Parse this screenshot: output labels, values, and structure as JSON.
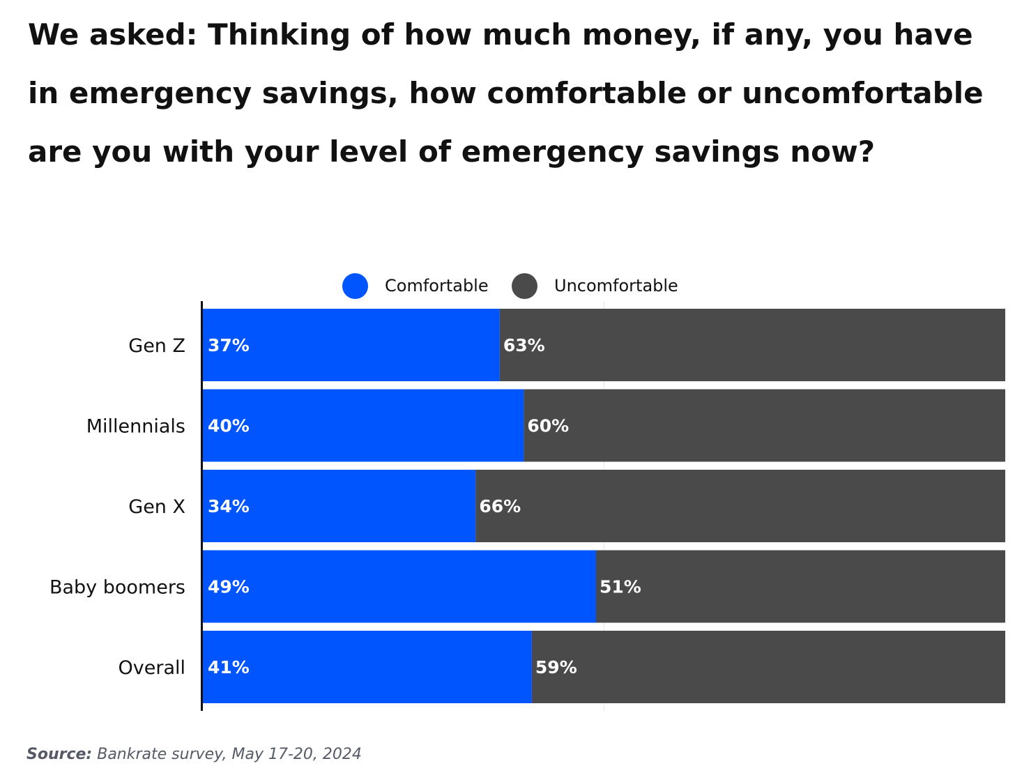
{
  "title": "We asked: Thinking of how much money, if any, you have in emergency savings, how comfortable or uncomfortable are you with your level of emergency savings now?",
  "legend": [
    {
      "label": "Comfortable",
      "color": "#0055ff"
    },
    {
      "label": "Uncomfortable",
      "color": "#4a4a4a"
    }
  ],
  "source": {
    "label": "Source:",
    "text": "Bankrate survey, May 17-20, 2024"
  },
  "chart_data": {
    "type": "bar",
    "orientation": "horizontal",
    "stacked": true,
    "title": "We asked: Thinking of how much money, if any, you have in emergency savings, how comfortable or uncomfortable are you with your level of emergency savings now?",
    "categories": [
      "Gen Z",
      "Millennials",
      "Gen X",
      "Baby boomers",
      "Overall"
    ],
    "series": [
      {
        "name": "Comfortable",
        "color": "#0055ff",
        "values": [
          37,
          40,
          34,
          49,
          41
        ],
        "labels": [
          "37%",
          "40%",
          "34%",
          "49%",
          "41%"
        ]
      },
      {
        "name": "Uncomfortable",
        "color": "#4a4a4a",
        "values": [
          63,
          60,
          66,
          51,
          59
        ],
        "labels": [
          "63%",
          "60%",
          "66%",
          "51%",
          "59%"
        ]
      }
    ],
    "xlim": [
      0,
      100
    ],
    "unit": "%",
    "legend_position": "top-center",
    "grid": "vertical gridline at 50"
  }
}
